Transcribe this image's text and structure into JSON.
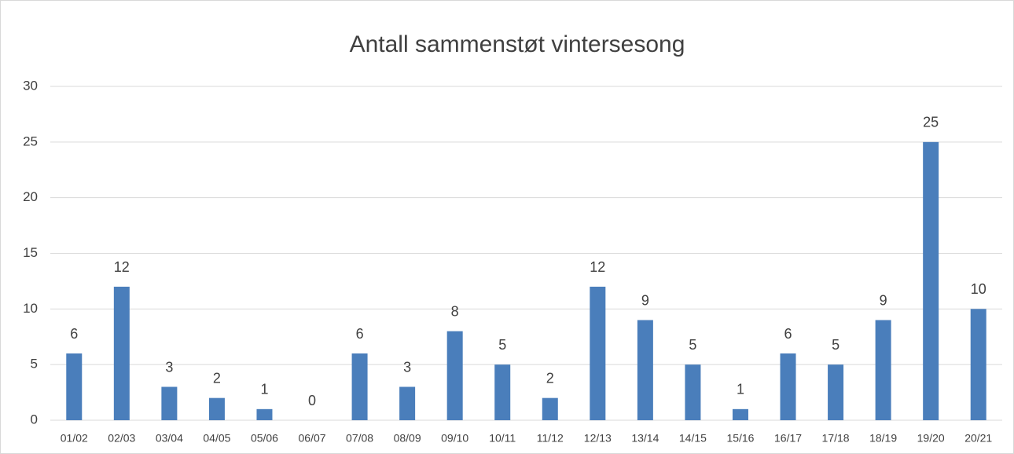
{
  "chart_data": {
    "type": "bar",
    "title": "Antall sammenstøt vintersesong",
    "categories": [
      "01/02",
      "02/03",
      "03/04",
      "04/05",
      "05/06",
      "06/07",
      "07/08",
      "08/09",
      "09/10",
      "10/11",
      "11/12",
      "12/13",
      "13/14",
      "14/15",
      "15/16",
      "16/17",
      "17/18",
      "18/19",
      "19/20",
      "20/21"
    ],
    "values": [
      6,
      12,
      3,
      2,
      1,
      0,
      6,
      3,
      8,
      5,
      2,
      12,
      9,
      5,
      1,
      6,
      5,
      9,
      25,
      10
    ],
    "color": "#4a7ebb",
    "ylim": [
      0,
      30
    ],
    "yticks": [
      0,
      5,
      10,
      15,
      20,
      25,
      30
    ],
    "grid": true,
    "data_labels": true
  }
}
